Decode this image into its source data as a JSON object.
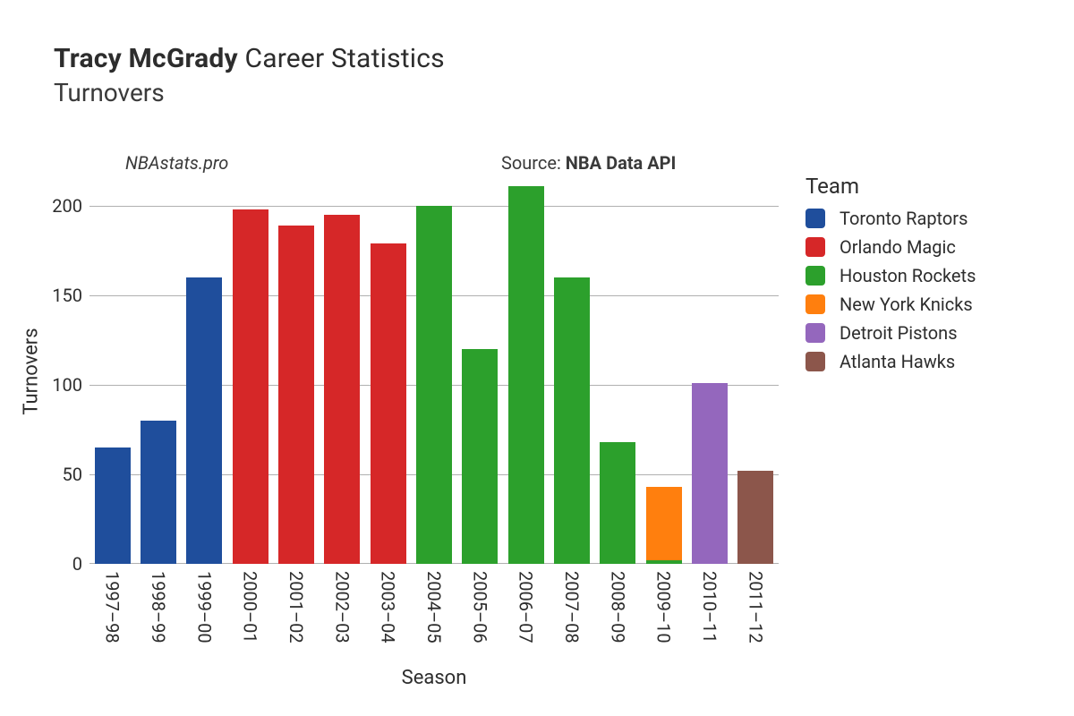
{
  "title": {
    "bold": "Tracy McGrady",
    "regular": " Career Statistics"
  },
  "subtitle": "Turnovers",
  "watermark": "NBAstats.pro",
  "source_label": "Source: ",
  "source_value": "NBA Data API",
  "y_axis_title": "Turnovers",
  "x_axis_title": "Season",
  "legend_title": "Team",
  "chart": {
    "type": "bar",
    "ylim": [
      0,
      215
    ],
    "yticks": [
      0,
      50,
      100,
      150,
      200
    ],
    "grid_color": "#b0b0b0",
    "background_color": "#ffffff",
    "bar_width": 0.78,
    "label_fontsize": 20,
    "axis_title_fontsize": 22,
    "categories": [
      "1997–98",
      "1998–99",
      "1999–00",
      "2000–01",
      "2001–02",
      "2002–03",
      "2003–04",
      "2004–05",
      "2005–06",
      "2006–07",
      "2007–08",
      "2008–09",
      "2009–10",
      "2010–11",
      "2011–12"
    ],
    "bars": [
      {
        "value": 65,
        "team": "Toronto Raptors"
      },
      {
        "value": 80,
        "team": "Toronto Raptors"
      },
      {
        "value": 160,
        "team": "Toronto Raptors"
      },
      {
        "value": 198,
        "team": "Orlando Magic"
      },
      {
        "value": 189,
        "team": "Orlando Magic"
      },
      {
        "value": 195,
        "team": "Orlando Magic"
      },
      {
        "value": 179,
        "team": "Orlando Magic"
      },
      {
        "value": 200,
        "team": "Houston Rockets"
      },
      {
        "value": 120,
        "team": "Houston Rockets"
      },
      {
        "value": 211,
        "team": "Houston Rockets"
      },
      {
        "value": 160,
        "team": "Houston Rockets"
      },
      {
        "value": 68,
        "team": "Houston Rockets"
      },
      {
        "value": 43,
        "team": "New York Knicks",
        "overlay_team": "Houston Rockets",
        "overlay_value": 2
      },
      {
        "value": 101,
        "team": "Detroit Pistons"
      },
      {
        "value": 52,
        "team": "Atlanta Hawks"
      }
    ]
  },
  "teams": [
    {
      "name": "Toronto Raptors",
      "color": "#1f4e9c"
    },
    {
      "name": "Orlando Magic",
      "color": "#d62728"
    },
    {
      "name": "Houston Rockets",
      "color": "#2ca02c"
    },
    {
      "name": "New York Knicks",
      "color": "#ff7f0e"
    },
    {
      "name": "Detroit Pistons",
      "color": "#9467bd"
    },
    {
      "name": "Atlanta Hawks",
      "color": "#8c564b"
    }
  ]
}
